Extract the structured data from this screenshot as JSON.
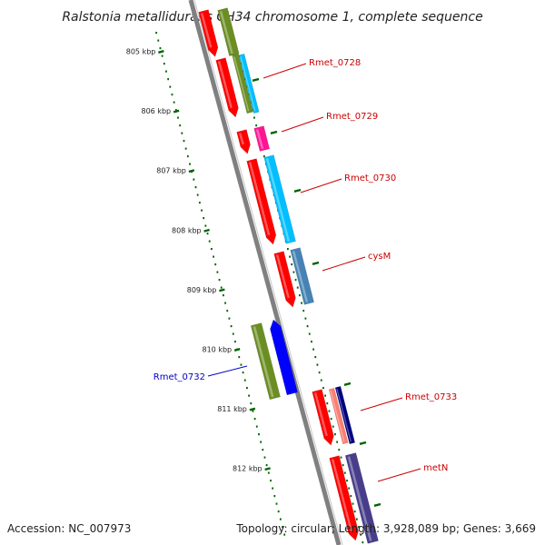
{
  "title": "Ralstonia metallidurans CH34 chromosome 1, complete sequence",
  "footer": {
    "accession": "Accession: NC_007973",
    "summary": "Topology: circular; Length: 3,928,089 bp; Genes: 3,669"
  },
  "ruler": {
    "ticks": [
      "805 kbp",
      "806 kbp",
      "807 kbp",
      "808 kbp",
      "809 kbp",
      "810 kbp",
      "811 kbp",
      "812 kbp"
    ]
  },
  "genes": [
    {
      "label": "Rmet_0728",
      "color": "#cc0000"
    },
    {
      "label": "Rmet_0729",
      "color": "#cc0000"
    },
    {
      "label": "Rmet_0730",
      "color": "#cc0000"
    },
    {
      "label": "cysM",
      "color": "#cc0000"
    },
    {
      "label": "Rmet_0732",
      "color": "#0000cc"
    },
    {
      "label": "Rmet_0733",
      "color": "#cc0000"
    },
    {
      "label": "metN",
      "color": "#cc0000"
    }
  ],
  "colors": {
    "cds": "#ff0000",
    "cds_rev": "#0000ff",
    "olive": "#6b8e23",
    "cyan": "#00bfff",
    "magenta": "#ff1493",
    "steel": "#4682b4",
    "salmon": "#fa8072",
    "navy": "#000080",
    "slate": "#483d8b",
    "backbone": "#808080",
    "tick": "#006400"
  }
}
